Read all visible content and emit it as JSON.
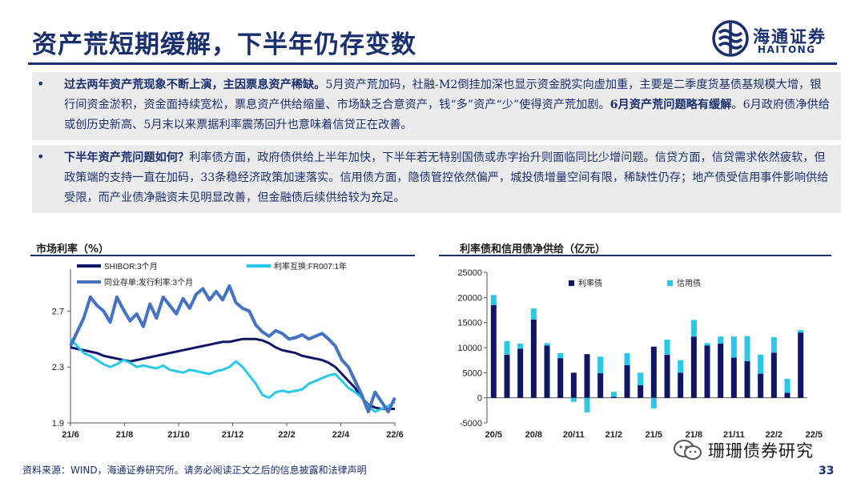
{
  "title": "资产荒短期缓解，下半年仍存变数",
  "logo": {
    "wordmark": "海通证券",
    "en": "HAITONG"
  },
  "bullets": [
    {
      "parts": [
        {
          "text": "过去两年资产荒现象不断上演，主因票息资产稀缺。",
          "bold": true
        },
        {
          "text": "5月资产荒加码，社融-M2倒挂加深也显示资金脱实向虚加重，主要是二季度货基债基规模大增，银行间资金淤积，资金面持续宽松，票息资产供给缩量、市场缺乏合意资产，钱“多”资产“少”使得资产荒加剧。",
          "bold": false
        },
        {
          "text": "6月资产荒问题略有缓解",
          "bold": true
        },
        {
          "text": "。6月政府债净供给或创历史新高、5月末以来票据利率震荡回升也意味着信贷正在改善。",
          "bold": false
        }
      ]
    },
    {
      "parts": [
        {
          "text": "下半年资产荒问题如何？",
          "bold": true
        },
        {
          "text": "利率债方面，政府债供给上半年加快，下半年若无特别国债或赤字抬升则面临同比少增问题。信贷方面，信贷需求依然疲软，但政策端的支持一直在加码，33条稳经济政策加速落实。信用债方面，隐债管控依然偏严，城投债增量空间有限，稀缺性仍存；地产债受信用事件影响供给受限，而产业债净融资未见明显改善，但金融债后续供给较为充足。",
          "bold": false
        }
      ]
    }
  ],
  "left_chart_title": "市场利率（%）",
  "right_chart_title": "利率债和信用债净供给（亿元）",
  "footer_source": "资料来源：WIND，海通证券研究所。请务必阅读正文之后的信息披露和法律声明",
  "page_number": "33",
  "watermark_text": "珊珊债券研究",
  "colors": {
    "navy": "#1a2f6e",
    "dark_navy": "#0f1666",
    "mid_blue": "#4472c4",
    "cyan": "#28c8e6",
    "light_blue": "#6b8fe6"
  },
  "chart_data": [
    {
      "type": "line",
      "title": "市场利率（%）",
      "x_ticks": [
        "21/6",
        "21/8",
        "21/10",
        "21/12",
        "22/2",
        "22/4",
        "22/6"
      ],
      "ylim": [
        1.9,
        3.0
      ],
      "y_ticks": [
        1.9,
        2.3,
        2.7
      ],
      "legend": "top-left",
      "series": [
        {
          "name": "SHIBOR:3个月",
          "color": "#0f1666",
          "values": [
            2.44,
            2.43,
            2.42,
            2.41,
            2.4,
            2.38,
            2.37,
            2.36,
            2.35,
            2.34,
            2.35,
            2.36,
            2.37,
            2.38,
            2.39,
            2.4,
            2.41,
            2.42,
            2.43,
            2.44,
            2.45,
            2.46,
            2.47,
            2.48,
            2.48,
            2.49,
            2.5,
            2.5,
            2.5,
            2.49,
            2.47,
            2.44,
            2.42,
            2.41,
            2.4,
            2.38,
            2.37,
            2.36,
            2.35,
            2.33,
            2.3,
            2.25,
            2.2,
            2.15,
            2.08,
            2.03,
            2.01,
            2.0,
            2.0,
            2.0
          ]
        },
        {
          "name": "利率互换:FR007:1年",
          "color": "#28c8e6",
          "values": [
            2.5,
            2.45,
            2.4,
            2.38,
            2.35,
            2.32,
            2.3,
            2.32,
            2.35,
            2.33,
            2.3,
            2.31,
            2.3,
            2.29,
            2.31,
            2.28,
            2.27,
            2.26,
            2.28,
            2.27,
            2.26,
            2.25,
            2.27,
            2.28,
            2.3,
            2.34,
            2.3,
            2.24,
            2.18,
            2.1,
            2.08,
            2.12,
            2.13,
            2.12,
            2.13,
            2.14,
            2.18,
            2.2,
            2.22,
            2.24,
            2.25,
            2.2,
            2.15,
            2.12,
            2.08,
            2.02,
            1.98,
            2.0,
            2.02,
            2.05
          ]
        },
        {
          "name": "同业存单:发行利率:3个月",
          "color": "#4472c4",
          "values": [
            2.45,
            2.55,
            2.65,
            2.8,
            2.74,
            2.7,
            2.62,
            2.8,
            2.71,
            2.63,
            2.68,
            2.59,
            2.75,
            2.65,
            2.8,
            2.74,
            2.68,
            2.79,
            2.72,
            2.82,
            2.86,
            2.78,
            2.84,
            2.78,
            2.88,
            2.76,
            2.72,
            2.7,
            2.6,
            2.55,
            2.52,
            2.56,
            2.54,
            2.5,
            2.51,
            2.53,
            2.5,
            2.52,
            2.54,
            2.5,
            2.45,
            2.35,
            2.3,
            2.2,
            2.1,
            1.98,
            2.12,
            2.05,
            1.98,
            2.08
          ]
        }
      ]
    },
    {
      "type": "bar",
      "title": "利率债和信用债净供给（亿元）",
      "x_ticks": [
        "20/5",
        "20/8",
        "20/11",
        "21/2",
        "21/5",
        "21/8",
        "21/11",
        "22/2",
        "22/5"
      ],
      "ylim": [
        -5000,
        25000
      ],
      "y_ticks": [
        -5000,
        0,
        5000,
        10000,
        15000,
        20000,
        25000
      ],
      "legend": "top-left",
      "series": [
        {
          "name": "利率债",
          "color": "#0f1666",
          "values": [
            18500,
            8600,
            9800,
            15600,
            10400,
            7900,
            5000,
            8700,
            4900,
            200,
            6500,
            2500,
            10200,
            8600,
            5000,
            12200,
            10400,
            10800,
            8000,
            7300,
            4800,
            9000,
            1000,
            13000
          ]
        },
        {
          "name": "信用债",
          "color": "#28c8e6",
          "values": [
            2000,
            2700,
            1000,
            2200,
            500,
            1000,
            -800,
            -2900,
            3300,
            1000,
            2400,
            2500,
            -2100,
            3000,
            2500,
            3300,
            500,
            1400,
            4200,
            5000,
            3800,
            3100,
            2800,
            500
          ]
        }
      ]
    }
  ]
}
